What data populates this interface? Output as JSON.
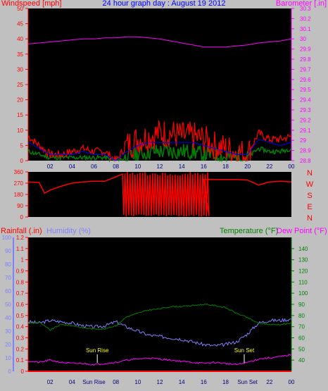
{
  "title": "24 hour graph day : August 19 2012",
  "colors": {
    "background": "#c0c0c0",
    "plot_background": "#000000",
    "windspeed": "#ff0000",
    "wind_gust": "#ff0000",
    "wind_avg": "#0000ff",
    "wind_min": "#008000",
    "barometer": "#ff00ff",
    "direction": "#ff0000",
    "rainfall": "#ff0000",
    "humidity": "#8080ff",
    "temperature": "#008000",
    "dewpoint": "#ff00ff",
    "sun_marker": "#ffff00"
  },
  "chart_data": [
    {
      "type": "line",
      "panel": "wind-barometer",
      "title": "24 hour graph day : August 19 2012",
      "ylabel": "Windspeed [mph]",
      "y2label": "Barometer [.in]",
      "ylim": [
        0,
        50
      ],
      "yticks": [
        0,
        5,
        10,
        15,
        20,
        25,
        30,
        35,
        40,
        45,
        50
      ],
      "y2lim": [
        28.8,
        30.3
      ],
      "y2ticks": [
        28.8,
        28.9,
        29,
        29.1,
        29.2,
        29.3,
        29.4,
        29.5,
        29.6,
        29.7,
        29.8,
        29.9,
        30,
        30.1,
        30.2,
        30.3
      ],
      "xlim": [
        0,
        24
      ],
      "xticks": [
        "02",
        "04",
        "06",
        "08",
        "10",
        "12",
        "14",
        "16",
        "18",
        "20",
        "22",
        "00"
      ],
      "x": [
        0,
        1,
        2,
        3,
        4,
        5,
        6,
        7,
        8,
        9,
        10,
        11,
        12,
        13,
        14,
        15,
        16,
        17,
        18,
        19,
        20,
        21,
        22,
        23,
        24
      ],
      "series": [
        {
          "axis": "y",
          "values": [
            8,
            5,
            2,
            2,
            3,
            4,
            3,
            3,
            0,
            5,
            7,
            8,
            9,
            9,
            8,
            8,
            7,
            5,
            4,
            3,
            2,
            9,
            7,
            7,
            8
          ]
        },
        {
          "axis": "y",
          "values": [
            6,
            4,
            2,
            2,
            2,
            3,
            2,
            2,
            0,
            3,
            5,
            6,
            6,
            6,
            6,
            6,
            5,
            4,
            3,
            2,
            2,
            7,
            6,
            5,
            6
          ]
        },
        {
          "axis": "y",
          "values": [
            3,
            2,
            1,
            1,
            1,
            1,
            1,
            1,
            0,
            1,
            2,
            3,
            3,
            3,
            3,
            3,
            2,
            2,
            1,
            1,
            1,
            4,
            3,
            3,
            4
          ]
        },
        {
          "axis": "y2",
          "values": [
            29.95,
            29.96,
            29.97,
            29.98,
            29.99,
            30.0,
            30.0,
            30.01,
            30.01,
            30.02,
            30.02,
            30.01,
            30.0,
            29.98,
            29.96,
            29.94,
            29.92,
            29.92,
            29.92,
            29.93,
            29.94,
            29.96,
            29.97,
            29.98,
            30.0
          ]
        }
      ]
    },
    {
      "type": "line",
      "panel": "wind-direction",
      "y2labels": [
        "N",
        "W",
        "S",
        "E",
        "N"
      ],
      "ylim": [
        0,
        360
      ],
      "yticks": [
        0,
        90,
        180,
        270,
        360
      ],
      "xlim": [
        0,
        24
      ],
      "x": [
        0,
        1,
        1.5,
        2,
        3,
        4,
        5,
        6,
        7,
        8,
        9,
        16,
        17,
        18,
        19,
        20,
        21,
        22,
        23,
        24
      ],
      "series": [
        {
          "values": [
            280,
            275,
            190,
            215,
            245,
            270,
            280,
            285,
            285,
            285,
            285,
            300,
            300,
            300,
            300,
            295,
            255,
            280,
            285,
            280
          ]
        }
      ]
    },
    {
      "type": "line",
      "panel": "rain-humidity-temperature",
      "labels": {
        "rainfall": "Rainfall (.in)",
        "humidity": "Humidity (%)",
        "temperature": "Temperature (°F)",
        "dewpoint": "Dew Point (°F)"
      },
      "rain_ylim": [
        0,
        1.2
      ],
      "rain_yticks": [
        0,
        0.1,
        0.2,
        0.3,
        0.4,
        0.5,
        0.6,
        0.7,
        0.8,
        0.9,
        1.0,
        1.1,
        1.2
      ],
      "humidity_ylim": [
        0,
        100
      ],
      "humidity_yticks": [
        0,
        10,
        20,
        30,
        40,
        50,
        60,
        70,
        80,
        90,
        100
      ],
      "temp_ylim": [
        30,
        150
      ],
      "temp_yticks": [
        40,
        50,
        60,
        70,
        80,
        90,
        100,
        110,
        120,
        130,
        140
      ],
      "xlim": [
        0,
        24
      ],
      "xticks": [
        "02",
        "04",
        "Sun Rise",
        "08",
        "10",
        "12",
        "14",
        "16",
        "18",
        "Sun Set",
        "22",
        "00"
      ],
      "annotations": [
        {
          "text": "Sun Rise",
          "x": 6.3
        },
        {
          "text": "Sun Set",
          "x": 19.7
        }
      ],
      "x": [
        0,
        1,
        2,
        3,
        4,
        5,
        6,
        7,
        8,
        9,
        10,
        11,
        12,
        13,
        14,
        15,
        16,
        17,
        18,
        19,
        20,
        21,
        22,
        23,
        24
      ],
      "series": [
        {
          "name": "Rainfall (.in)",
          "axis": "rain",
          "values": [
            0,
            0,
            0,
            0,
            0,
            0,
            0,
            0,
            0,
            0,
            0,
            0,
            0,
            0,
            0,
            0,
            0,
            0,
            0,
            0,
            0,
            0,
            0,
            0,
            0
          ]
        },
        {
          "name": "Humidity (%)",
          "axis": "humidity",
          "values": [
            37,
            36,
            38,
            37,
            36,
            34,
            33,
            34,
            37,
            33,
            30,
            27,
            26,
            25,
            24,
            22,
            20,
            19,
            20,
            22,
            28,
            36,
            38,
            38,
            39
          ]
        },
        {
          "name": "Temperature (°F)",
          "axis": "temp",
          "values": [
            73,
            74,
            67,
            72,
            71,
            69,
            68,
            68,
            71,
            79,
            82,
            85,
            86,
            88,
            88,
            89,
            90,
            89,
            87,
            82,
            78,
            73,
            72,
            72,
            73
          ]
        },
        {
          "name": "Dew Point (°F)",
          "axis": "temp",
          "values": [
            39,
            38,
            40,
            38,
            37,
            37,
            36,
            37,
            38,
            40,
            41,
            42,
            41,
            40,
            39,
            38,
            37,
            38,
            37,
            36,
            38,
            41,
            42,
            43,
            45
          ]
        }
      ]
    }
  ]
}
